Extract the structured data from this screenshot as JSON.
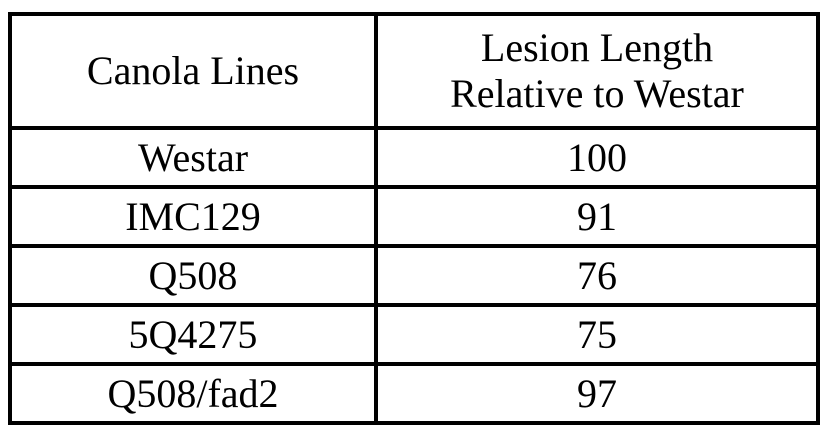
{
  "table": {
    "headers": [
      "Canola Lines",
      "Lesion Length",
      "Relative to Westar"
    ],
    "rows": [
      {
        "line": "Westar",
        "value": "100"
      },
      {
        "line": "IMC129",
        "value": "91"
      },
      {
        "line": "Q508",
        "value": "76"
      },
      {
        "line": "5Q4275",
        "value": "75"
      },
      {
        "line": "Q508/fad2",
        "value": "97"
      }
    ]
  }
}
